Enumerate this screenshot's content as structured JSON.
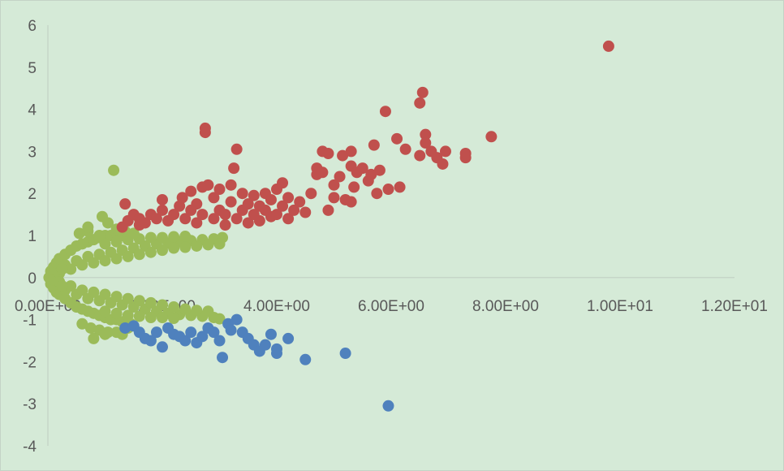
{
  "chart_data": {
    "type": "scatter",
    "title": "",
    "xlabel": "",
    "ylabel": "",
    "xlim": [
      0,
      12
    ],
    "ylim": [
      -4,
      6
    ],
    "x_ticks": [
      {
        "value": 0,
        "label": "0.00E+00"
      },
      {
        "value": 2,
        "label": "2.00E+00"
      },
      {
        "value": 4,
        "label": "4.00E+00"
      },
      {
        "value": 6,
        "label": "6.00E+00"
      },
      {
        "value": 8,
        "label": "8.00E+00"
      },
      {
        "value": 10,
        "label": "1.00E+01"
      },
      {
        "value": 12,
        "label": "1.20E+01"
      }
    ],
    "y_ticks": [
      {
        "value": 6,
        "label": "6"
      },
      {
        "value": 5,
        "label": "5"
      },
      {
        "value": 4,
        "label": "4"
      },
      {
        "value": 3,
        "label": "3"
      },
      {
        "value": 2,
        "label": "2"
      },
      {
        "value": 1,
        "label": "1"
      },
      {
        "value": 0,
        "label": "0"
      },
      {
        "value": -1,
        "label": "-1"
      },
      {
        "value": -2,
        "label": "-2"
      },
      {
        "value": -3,
        "label": "-3"
      },
      {
        "value": -4,
        "label": "-4"
      }
    ],
    "grid": false,
    "legend": "none",
    "background_color": "#d5ead7",
    "axis_color": "#c6d6c8",
    "series": [
      {
        "color": "#9bbb59",
        "points": [
          [
            0.02,
            0.0
          ],
          [
            0.05,
            0.15
          ],
          [
            0.05,
            -0.15
          ],
          [
            0.1,
            0.25
          ],
          [
            0.1,
            -0.25
          ],
          [
            0.15,
            0.35
          ],
          [
            0.15,
            -0.35
          ],
          [
            0.2,
            0.45
          ],
          [
            0.2,
            -0.4
          ],
          [
            0.3,
            0.55
          ],
          [
            0.3,
            -0.5
          ],
          [
            0.4,
            0.65
          ],
          [
            0.4,
            -0.6
          ],
          [
            0.5,
            0.75
          ],
          [
            0.5,
            -0.7
          ],
          [
            0.6,
            0.8
          ],
          [
            0.6,
            -0.75
          ],
          [
            0.7,
            0.85
          ],
          [
            0.7,
            -0.8
          ],
          [
            0.8,
            0.9
          ],
          [
            0.8,
            -0.85
          ],
          [
            0.9,
            0.95
          ],
          [
            0.9,
            -0.9
          ],
          [
            1.0,
            1.0
          ],
          [
            1.0,
            -0.95
          ],
          [
            1.1,
            1.0
          ],
          [
            1.1,
            -1.0
          ],
          [
            1.2,
            1.05
          ],
          [
            1.2,
            -1.0
          ],
          [
            1.3,
            1.0
          ],
          [
            1.3,
            -1.05
          ],
          [
            0.3,
            0.3
          ],
          [
            0.3,
            -0.3
          ],
          [
            0.5,
            0.4
          ],
          [
            0.5,
            -0.4
          ],
          [
            0.7,
            0.5
          ],
          [
            0.7,
            -0.5
          ],
          [
            0.9,
            0.55
          ],
          [
            0.9,
            -0.55
          ],
          [
            1.1,
            0.6
          ],
          [
            1.1,
            -0.6
          ],
          [
            1.3,
            0.65
          ],
          [
            1.3,
            -0.65
          ],
          [
            1.5,
            0.7
          ],
          [
            1.5,
            -0.7
          ],
          [
            1.7,
            0.75
          ],
          [
            1.7,
            -0.75
          ],
          [
            1.9,
            0.8
          ],
          [
            1.9,
            -0.8
          ],
          [
            2.1,
            0.82
          ],
          [
            2.1,
            -0.85
          ],
          [
            2.3,
            0.85
          ],
          [
            2.3,
            -0.88
          ],
          [
            2.5,
            0.88
          ],
          [
            2.5,
            -0.9
          ],
          [
            2.7,
            0.9
          ],
          [
            2.7,
            -0.92
          ],
          [
            2.9,
            0.92
          ],
          [
            2.9,
            -0.95
          ],
          [
            3.05,
            0.95
          ],
          [
            3.0,
            -0.98
          ],
          [
            0.4,
            0.2
          ],
          [
            0.4,
            -0.2
          ],
          [
            0.6,
            0.3
          ],
          [
            0.6,
            -0.3
          ],
          [
            0.8,
            0.35
          ],
          [
            0.8,
            -0.35
          ],
          [
            1.0,
            0.4
          ],
          [
            1.0,
            -0.4
          ],
          [
            1.2,
            0.45
          ],
          [
            1.2,
            -0.45
          ],
          [
            1.4,
            0.5
          ],
          [
            1.4,
            -0.5
          ],
          [
            1.6,
            0.55
          ],
          [
            1.6,
            -0.55
          ],
          [
            1.8,
            0.6
          ],
          [
            1.8,
            -0.6
          ],
          [
            2.0,
            0.65
          ],
          [
            2.0,
            -0.65
          ],
          [
            2.2,
            0.7
          ],
          [
            2.2,
            -0.7
          ],
          [
            2.4,
            0.72
          ],
          [
            2.4,
            -0.75
          ],
          [
            2.6,
            0.75
          ],
          [
            2.6,
            -0.78
          ],
          [
            2.8,
            0.78
          ],
          [
            2.8,
            -0.8
          ],
          [
            3.0,
            0.8
          ],
          [
            0.1,
            0.05
          ],
          [
            0.1,
            -0.05
          ],
          [
            0.2,
            0.1
          ],
          [
            0.2,
            -0.1
          ],
          [
            0.25,
            0.2
          ],
          [
            0.25,
            -0.2
          ],
          [
            1.0,
            0.8
          ],
          [
            1.2,
            0.85
          ],
          [
            1.4,
            0.9
          ],
          [
            1.6,
            0.92
          ],
          [
            1.8,
            0.95
          ],
          [
            2.0,
            0.95
          ],
          [
            2.2,
            0.97
          ],
          [
            2.4,
            0.98
          ],
          [
            1.0,
            -0.8
          ],
          [
            1.2,
            -0.85
          ],
          [
            1.4,
            -0.9
          ],
          [
            1.6,
            -0.92
          ],
          [
            1.8,
            -0.95
          ],
          [
            2.0,
            -0.95
          ],
          [
            2.2,
            -0.97
          ],
          [
            0.55,
            1.05
          ],
          [
            0.7,
            1.1
          ],
          [
            0.9,
            1.0
          ],
          [
            0.6,
            -1.1
          ],
          [
            0.75,
            -1.2
          ],
          [
            0.9,
            -1.25
          ],
          [
            1.05,
            -1.3
          ],
          [
            0.8,
            -1.45
          ],
          [
            1.0,
            -1.35
          ],
          [
            1.2,
            -1.3
          ],
          [
            1.3,
            -1.35
          ],
          [
            1.4,
            -1.2
          ],
          [
            1.45,
            -1.1
          ],
          [
            1.15,
            2.55
          ],
          [
            0.95,
            1.45
          ],
          [
            0.7,
            1.2
          ],
          [
            1.05,
            1.3
          ],
          [
            1.2,
            1.15
          ],
          [
            1.35,
            1.1
          ],
          [
            1.5,
            1.05
          ]
        ]
      },
      {
        "color": "#c0504d",
        "points": [
          [
            1.3,
            1.2
          ],
          [
            1.4,
            1.35
          ],
          [
            1.35,
            1.75
          ],
          [
            1.5,
            1.5
          ],
          [
            1.6,
            1.4
          ],
          [
            1.6,
            1.25
          ],
          [
            1.7,
            1.3
          ],
          [
            1.8,
            1.5
          ],
          [
            1.9,
            1.4
          ],
          [
            2.0,
            1.6
          ],
          [
            2.0,
            1.85
          ],
          [
            2.1,
            1.35
          ],
          [
            2.2,
            1.5
          ],
          [
            2.3,
            1.7
          ],
          [
            2.35,
            1.9
          ],
          [
            2.4,
            1.4
          ],
          [
            2.5,
            1.6
          ],
          [
            2.5,
            2.05
          ],
          [
            2.6,
            1.3
          ],
          [
            2.6,
            1.75
          ],
          [
            2.7,
            1.5
          ],
          [
            2.7,
            2.15
          ],
          [
            2.75,
            3.45
          ],
          [
            2.75,
            3.55
          ],
          [
            2.8,
            2.2
          ],
          [
            2.9,
            1.4
          ],
          [
            2.9,
            1.9
          ],
          [
            3.0,
            1.6
          ],
          [
            3.0,
            2.1
          ],
          [
            3.1,
            1.5
          ],
          [
            3.1,
            1.25
          ],
          [
            3.2,
            1.8
          ],
          [
            3.2,
            2.2
          ],
          [
            3.25,
            2.6
          ],
          [
            3.3,
            3.05
          ],
          [
            3.3,
            1.4
          ],
          [
            3.4,
            1.6
          ],
          [
            3.4,
            2.0
          ],
          [
            3.5,
            1.3
          ],
          [
            3.5,
            1.75
          ],
          [
            3.6,
            1.5
          ],
          [
            3.6,
            1.95
          ],
          [
            3.7,
            1.35
          ],
          [
            3.7,
            1.7
          ],
          [
            3.8,
            1.6
          ],
          [
            3.8,
            2.0
          ],
          [
            3.9,
            1.45
          ],
          [
            3.9,
            1.85
          ],
          [
            4.0,
            1.5
          ],
          [
            4.0,
            2.1
          ],
          [
            4.1,
            1.7
          ],
          [
            4.1,
            2.25
          ],
          [
            4.2,
            1.4
          ],
          [
            4.2,
            1.9
          ],
          [
            4.3,
            1.6
          ],
          [
            4.4,
            1.8
          ],
          [
            4.5,
            1.55
          ],
          [
            4.6,
            2.0
          ],
          [
            4.7,
            2.6
          ],
          [
            4.7,
            2.45
          ],
          [
            4.8,
            2.5
          ],
          [
            4.8,
            3.0
          ],
          [
            4.9,
            2.95
          ],
          [
            4.9,
            1.6
          ],
          [
            5.0,
            1.9
          ],
          [
            5.0,
            2.2
          ],
          [
            5.1,
            2.4
          ],
          [
            5.15,
            2.9
          ],
          [
            5.2,
            1.85
          ],
          [
            5.3,
            2.65
          ],
          [
            5.3,
            3.0
          ],
          [
            5.3,
            1.8
          ],
          [
            5.35,
            2.15
          ],
          [
            5.4,
            2.5
          ],
          [
            5.5,
            2.6
          ],
          [
            5.6,
            2.3
          ],
          [
            5.65,
            2.45
          ],
          [
            5.7,
            3.15
          ],
          [
            5.75,
            2.0
          ],
          [
            5.8,
            2.55
          ],
          [
            5.9,
            3.95
          ],
          [
            5.95,
            2.1
          ],
          [
            6.1,
            3.3
          ],
          [
            6.15,
            2.15
          ],
          [
            6.25,
            3.05
          ],
          [
            6.5,
            4.15
          ],
          [
            6.5,
            2.9
          ],
          [
            6.55,
            4.4
          ],
          [
            6.6,
            3.4
          ],
          [
            6.6,
            3.2
          ],
          [
            6.7,
            3.0
          ],
          [
            6.8,
            2.85
          ],
          [
            6.9,
            2.7
          ],
          [
            6.95,
            3.0
          ],
          [
            7.3,
            2.85
          ],
          [
            7.3,
            2.95
          ],
          [
            7.75,
            3.35
          ],
          [
            9.8,
            5.5
          ]
        ]
      },
      {
        "color": "#4f81bd",
        "points": [
          [
            1.35,
            -1.2
          ],
          [
            1.5,
            -1.15
          ],
          [
            1.6,
            -1.3
          ],
          [
            1.7,
            -1.45
          ],
          [
            1.8,
            -1.5
          ],
          [
            1.9,
            -1.3
          ],
          [
            2.0,
            -1.65
          ],
          [
            2.1,
            -1.2
          ],
          [
            2.2,
            -1.35
          ],
          [
            2.3,
            -1.4
          ],
          [
            2.4,
            -1.5
          ],
          [
            2.5,
            -1.3
          ],
          [
            2.6,
            -1.55
          ],
          [
            2.7,
            -1.4
          ],
          [
            2.8,
            -1.2
          ],
          [
            2.9,
            -1.3
          ],
          [
            3.0,
            -1.5
          ],
          [
            3.05,
            -1.9
          ],
          [
            3.15,
            -1.1
          ],
          [
            3.2,
            -1.25
          ],
          [
            3.3,
            -1.0
          ],
          [
            3.4,
            -1.3
          ],
          [
            3.5,
            -1.45
          ],
          [
            3.6,
            -1.6
          ],
          [
            3.7,
            -1.75
          ],
          [
            3.8,
            -1.6
          ],
          [
            3.9,
            -1.35
          ],
          [
            4.0,
            -1.7
          ],
          [
            4.0,
            -1.8
          ],
          [
            4.2,
            -1.45
          ],
          [
            4.5,
            -1.95
          ],
          [
            5.2,
            -1.8
          ],
          [
            5.95,
            -3.05
          ]
        ]
      }
    ]
  }
}
